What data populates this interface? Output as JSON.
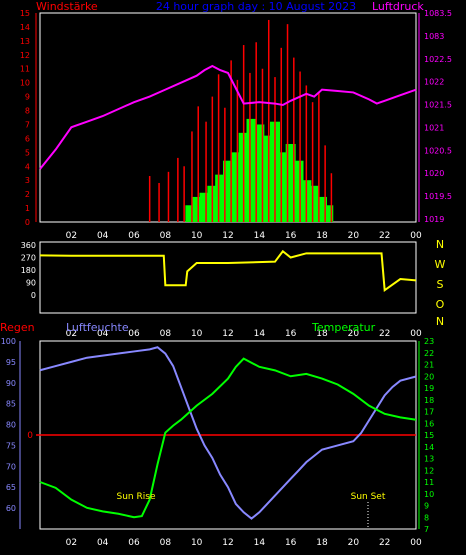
{
  "top_titles": {
    "left": "Windstärke",
    "center": "24 hour graph day : 10 August 2023",
    "right": "Luftdruck"
  },
  "x_ticks": [
    "02",
    "04",
    "06",
    "08",
    "10",
    "12",
    "14",
    "16",
    "18",
    "20",
    "22",
    "00"
  ],
  "chart_data": [
    {
      "type": "bar",
      "name": "wind_pressure",
      "title": "24 hour graph day : 10 August 2023",
      "left_axis_label": "Windstärke",
      "right_axis_label": "Luftdruck",
      "y_left": {
        "min": 0,
        "max": 15,
        "ticks": [
          0,
          1,
          2,
          3,
          4,
          5,
          6,
          7,
          8,
          9,
          10,
          11,
          12,
          13,
          14,
          15
        ]
      },
      "y_right": {
        "min": 1019,
        "max": 1083.5,
        "ticks": [
          "1019",
          "1019.5",
          "1020",
          "1020.5",
          "1021",
          "1021.5",
          "1022",
          "1022.5",
          "1083",
          "1083.5"
        ]
      },
      "x_range_hours": [
        0,
        24
      ],
      "series": [
        {
          "kind": "pressure_line",
          "color": "#ff00ff",
          "points": [
            [
              0,
              3.8
            ],
            [
              1,
              5.2
            ],
            [
              2,
              6.8
            ],
            [
              3,
              7.2
            ],
            [
              4,
              7.6
            ],
            [
              5,
              8.1
            ],
            [
              6,
              8.6
            ],
            [
              7,
              9.0
            ],
            [
              8,
              9.5
            ],
            [
              9,
              10.0
            ],
            [
              10,
              10.5
            ],
            [
              10.5,
              10.9
            ],
            [
              11,
              11.2
            ],
            [
              11.5,
              10.9
            ],
            [
              12,
              10.7
            ],
            [
              12.5,
              9.6
            ],
            [
              13,
              8.5
            ],
            [
              14,
              8.6
            ],
            [
              15,
              8.5
            ],
            [
              15.5,
              8.4
            ],
            [
              16,
              8.7
            ],
            [
              17,
              9.2
            ],
            [
              17.5,
              9.0
            ],
            [
              18,
              9.5
            ],
            [
              19,
              9.4
            ],
            [
              20,
              9.3
            ],
            [
              21,
              8.8
            ],
            [
              21.5,
              8.5
            ],
            [
              22,
              8.7
            ],
            [
              23,
              9.1
            ],
            [
              24,
              9.5
            ]
          ]
        },
        {
          "kind": "wind_avg_bars",
          "color": "#00ff00",
          "points": [
            [
              9.6,
              1.2
            ],
            [
              10,
              1.8
            ],
            [
              10.5,
              2.1
            ],
            [
              11,
              2.6
            ],
            [
              11.5,
              3.4
            ],
            [
              12,
              4.4
            ],
            [
              12.5,
              5.0
            ],
            [
              13,
              6.4
            ],
            [
              13.5,
              7.4
            ],
            [
              14,
              7.0
            ],
            [
              14.5,
              6.2
            ],
            [
              15,
              7.2
            ],
            [
              15.5,
              5.0
            ],
            [
              16,
              5.6
            ],
            [
              16.5,
              4.4
            ],
            [
              17,
              3.0
            ],
            [
              17.5,
              2.6
            ],
            [
              18,
              1.8
            ],
            [
              18.4,
              1.2
            ]
          ]
        },
        {
          "kind": "wind_gust_bars",
          "color": "#ff0000",
          "points": [
            [
              7.0,
              3.3
            ],
            [
              7.6,
              2.8
            ],
            [
              8.2,
              3.6
            ],
            [
              8.8,
              4.6
            ],
            [
              9.2,
              4.0
            ],
            [
              9.7,
              6.5
            ],
            [
              10.1,
              8.3
            ],
            [
              10.6,
              7.2
            ],
            [
              11.0,
              9.0
            ],
            [
              11.4,
              10.6
            ],
            [
              11.8,
              8.2
            ],
            [
              12.2,
              11.6
            ],
            [
              12.6,
              10.2
            ],
            [
              13.0,
              12.7
            ],
            [
              13.4,
              10.7
            ],
            [
              13.8,
              12.9
            ],
            [
              14.2,
              11.0
            ],
            [
              14.6,
              14.5
            ],
            [
              15.0,
              10.4
            ],
            [
              15.4,
              12.5
            ],
            [
              15.8,
              14.2
            ],
            [
              16.2,
              11.8
            ],
            [
              16.6,
              10.8
            ],
            [
              17.0,
              9.8
            ],
            [
              17.4,
              8.6
            ],
            [
              17.8,
              9.3
            ],
            [
              18.2,
              5.5
            ],
            [
              18.6,
              3.5
            ]
          ]
        }
      ]
    },
    {
      "type": "line",
      "name": "wind_direction",
      "y_left": {
        "min": 0,
        "max": 360,
        "ticks": [
          0,
          90,
          180,
          270,
          360
        ]
      },
      "right_labels": [
        "N",
        "W",
        "S",
        "O",
        "N"
      ],
      "color": "#ffff00",
      "points": [
        [
          0,
          285
        ],
        [
          2,
          283
        ],
        [
          4,
          283
        ],
        [
          6,
          283
        ],
        [
          7.9,
          283
        ],
        [
          8,
          70
        ],
        [
          9.3,
          70
        ],
        [
          9.4,
          170
        ],
        [
          10,
          230
        ],
        [
          12,
          230
        ],
        [
          15,
          240
        ],
        [
          15.5,
          315
        ],
        [
          16,
          270
        ],
        [
          17,
          300
        ],
        [
          19,
          300
        ],
        [
          20,
          300
        ],
        [
          21.8,
          300
        ],
        [
          22,
          35
        ],
        [
          23,
          115
        ],
        [
          24,
          105
        ]
      ]
    },
    {
      "type": "line",
      "name": "humidity_temperature_rain",
      "labels": {
        "rain": "Regen",
        "humidity": "Luftfeuchte",
        "temperature": "Temperatur"
      },
      "annotations": [
        "Sun Rise",
        "Sun Set"
      ],
      "y_left": {
        "min": 55,
        "max": 100,
        "ticks": [
          60,
          65,
          70,
          75,
          80,
          85,
          90,
          95,
          100
        ]
      },
      "y_right": {
        "min": 7,
        "max": 23,
        "ticks": [
          7,
          8,
          9,
          10,
          11,
          12,
          13,
          14,
          15,
          16,
          17,
          18,
          19,
          20,
          21,
          22,
          23
        ]
      },
      "rain_marker": {
        "value": "0",
        "color": "#ff0000"
      },
      "series": [
        {
          "name": "Luftfeuchte",
          "color": "#8888ff",
          "axis": "left",
          "points": [
            [
              0,
              93
            ],
            [
              1,
              94
            ],
            [
              2,
              95
            ],
            [
              3,
              96
            ],
            [
              4,
              96.5
            ],
            [
              5,
              97
            ],
            [
              6,
              97.5
            ],
            [
              7,
              98
            ],
            [
              7.5,
              98.5
            ],
            [
              8,
              97
            ],
            [
              8.5,
              94
            ],
            [
              9,
              89
            ],
            [
              9.5,
              84
            ],
            [
              10,
              79
            ],
            [
              10.5,
              75
            ],
            [
              11,
              72
            ],
            [
              11.5,
              68
            ],
            [
              12,
              65
            ],
            [
              12.5,
              61
            ],
            [
              13,
              59
            ],
            [
              13.5,
              57.5
            ],
            [
              14,
              59
            ],
            [
              14.5,
              61
            ],
            [
              15,
              63
            ],
            [
              15.5,
              65
            ],
            [
              16,
              67
            ],
            [
              16.5,
              69
            ],
            [
              17,
              71
            ],
            [
              17.5,
              72.5
            ],
            [
              18,
              74
            ],
            [
              19,
              75
            ],
            [
              20,
              76
            ],
            [
              20.5,
              78
            ],
            [
              21,
              81
            ],
            [
              21.5,
              84
            ],
            [
              22,
              87
            ],
            [
              22.5,
              89
            ],
            [
              23,
              90.5
            ],
            [
              24,
              91.5
            ]
          ]
        },
        {
          "name": "Temperatur",
          "color": "#00ff00",
          "axis": "right",
          "points": [
            [
              0,
              11
            ],
            [
              1,
              10.5
            ],
            [
              2,
              9.5
            ],
            [
              3,
              8.8
            ],
            [
              4,
              8.5
            ],
            [
              5,
              8.3
            ],
            [
              6,
              8.0
            ],
            [
              6.5,
              8.1
            ],
            [
              7,
              9.5
            ],
            [
              7.5,
              12.5
            ],
            [
              8,
              15.2
            ],
            [
              8.5,
              15.8
            ],
            [
              9,
              16.3
            ],
            [
              10,
              17.5
            ],
            [
              11,
              18.5
            ],
            [
              12,
              19.8
            ],
            [
              12.5,
              20.8
            ],
            [
              13,
              21.5
            ],
            [
              14,
              20.8
            ],
            [
              15,
              20.5
            ],
            [
              16,
              20.0
            ],
            [
              17,
              20.2
            ],
            [
              18,
              19.8
            ],
            [
              19,
              19.3
            ],
            [
              20,
              18.5
            ],
            [
              21,
              17.5
            ],
            [
              22,
              16.8
            ],
            [
              23,
              16.5
            ],
            [
              24,
              16.3
            ]
          ]
        }
      ]
    }
  ]
}
